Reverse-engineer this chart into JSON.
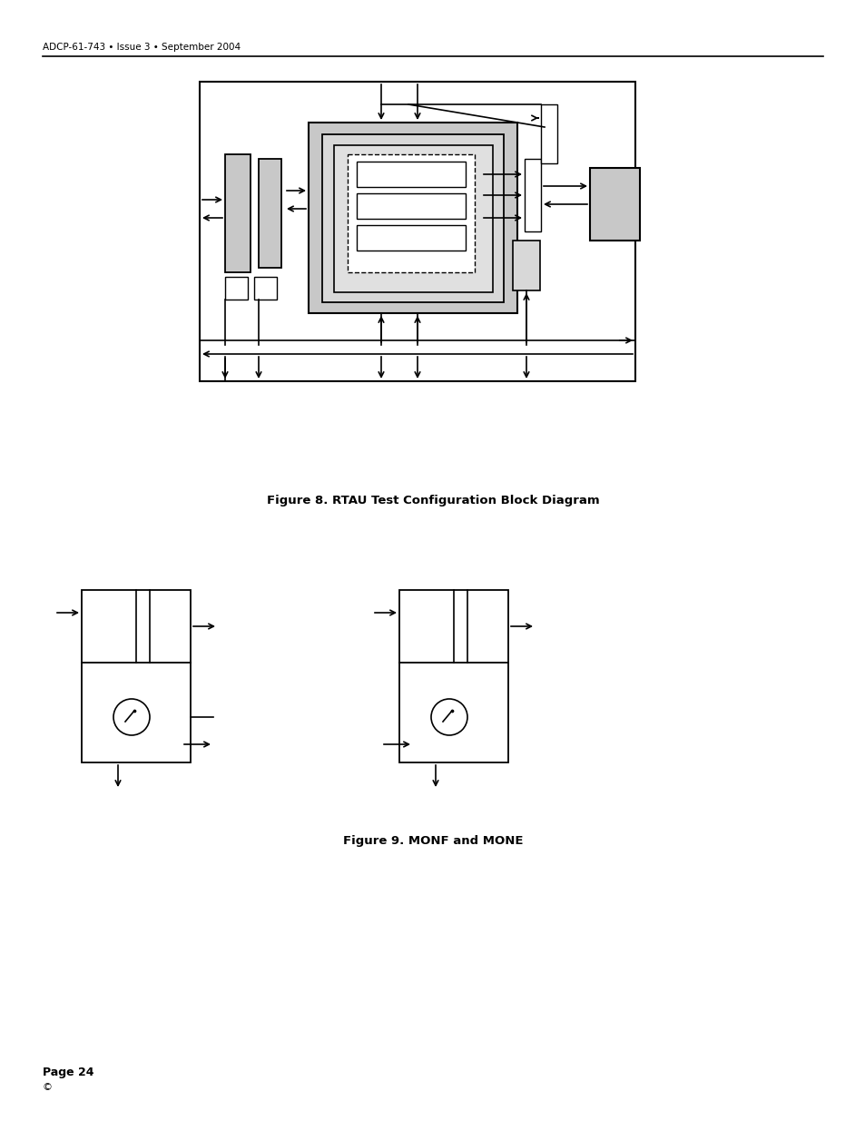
{
  "header_text": "ADCP-61-743 • Issue 3 • September 2004",
  "fig8_caption": "Figure 8. RTAU Test Configuration Block Diagram",
  "fig9_caption": "Figure 9. MONF and MONE",
  "footer_page": "Page 24",
  "footer_copy": "©",
  "bg_color": "#ffffff",
  "gray_fill": "#c8c8c8",
  "light_gray": "#d8d8d8",
  "dark_gray": "#aaaaaa"
}
